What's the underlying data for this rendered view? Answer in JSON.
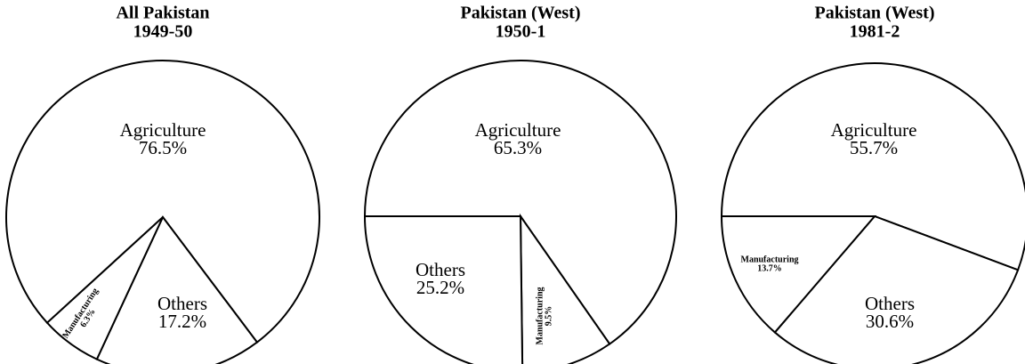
{
  "chart_data": [
    {
      "type": "pie",
      "title": "All Pakistan",
      "subtitle": "1949-50",
      "categories": [
        "Agriculture",
        "Others",
        "Manufacturing"
      ],
      "values": [
        76.5,
        17.2,
        6.3
      ],
      "value_labels": [
        "76.5%",
        "17.2%",
        "6.3%"
      ]
    },
    {
      "type": "pie",
      "title": "Pakistan (West)",
      "subtitle": "1950-1",
      "categories": [
        "Agriculture",
        "Manufacturing",
        "Others"
      ],
      "values": [
        65.3,
        9.5,
        25.2
      ],
      "value_labels": [
        "65.3%",
        "9.5%",
        "25.2%"
      ]
    },
    {
      "type": "pie",
      "title": "Pakistan (West)",
      "subtitle": "1981-2",
      "categories": [
        "Agriculture",
        "Others",
        "Manufacturing"
      ],
      "values": [
        55.7,
        30.6,
        13.7
      ],
      "value_labels": [
        "55.7%",
        "30.6%",
        "13.7%"
      ]
    }
  ]
}
